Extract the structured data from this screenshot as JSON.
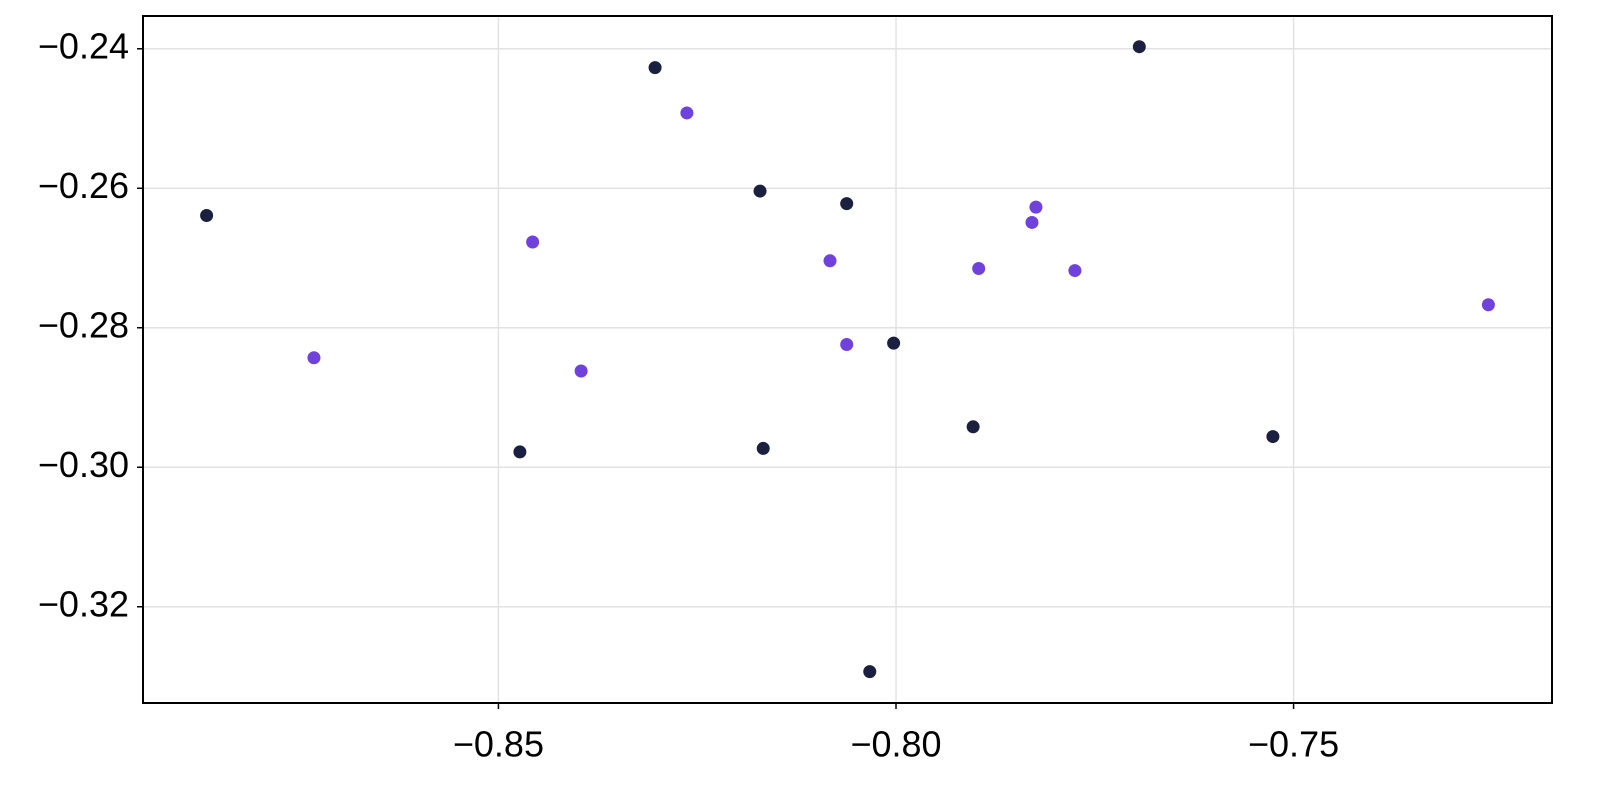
{
  "chart_data": {
    "type": "scatter",
    "series": [
      {
        "color": "#1b1f40",
        "x": [
          -0.8867,
          -0.8303,
          -0.8171,
          -0.8062,
          -0.8003,
          -0.8473,
          -0.8167,
          -0.7903,
          -0.8033,
          -0.7694,
          -0.7526
        ],
        "y": [
          -0.2639,
          -0.2427,
          -0.2604,
          -0.2622,
          -0.2822,
          -0.2978,
          -0.2973,
          -0.2942,
          -0.3293,
          -0.2397,
          -0.2956
        ]
      },
      {
        "color": "#7141dd",
        "x": [
          -0.8732,
          -0.8457,
          -0.8396,
          -0.8263,
          -0.8083,
          -0.8062,
          -0.7896,
          -0.7829,
          -0.7824,
          -0.7775,
          -0.7255
        ],
        "y": [
          -0.2843,
          -0.2677,
          -0.2862,
          -0.2492,
          -0.2704,
          -0.2824,
          -0.2715,
          -0.2649,
          -0.2627,
          -0.2718,
          -0.2767
        ]
      }
    ],
    "xlim": [
      -0.8947,
      -0.7175
    ],
    "ylim": [
      -0.3338,
      -0.2353
    ],
    "xticks": [
      {
        "value": -0.85,
        "label": "−0.85"
      },
      {
        "value": -0.8,
        "label": "−0.80"
      },
      {
        "value": -0.75,
        "label": "−0.75"
      }
    ],
    "yticks": [
      {
        "value": -0.24,
        "label": "−0.24"
      },
      {
        "value": -0.26,
        "label": "−0.26"
      },
      {
        "value": -0.28,
        "label": "−0.28"
      },
      {
        "value": -0.3,
        "label": "−0.30"
      },
      {
        "value": -0.32,
        "label": "−0.32"
      }
    ],
    "grid": true
  }
}
